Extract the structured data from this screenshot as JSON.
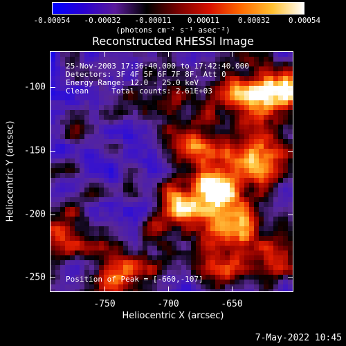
{
  "colorbar": {
    "ticks": [
      "-0.00054",
      "-0.00032",
      "-0.00011",
      "0.00011",
      "0.00032",
      "0.00054"
    ],
    "units": "(photons cm⁻² s⁻¹ asec⁻²)",
    "colors": [
      "#0000ff",
      "#2a00d0",
      "#5a1a9a",
      "#000000",
      "#7a0000",
      "#d81000",
      "#ff6a00",
      "#ffc030",
      "#ffffff"
    ]
  },
  "title": "Reconstructed RHESSI Image",
  "annotations": {
    "line1": "25-Nov-2003 17:36:40.000 to 17:42:40.000",
    "line2": "Detectors: 3F 4F 5F 6F 7F 8F, Att 0",
    "line3": "Energy Range: 12.0 - 25.0 keV",
    "line4": "Clean     Total counts: 2.61E+03",
    "peak": "Position of Peak = [-660,-107]"
  },
  "axes": {
    "xlabel": "Heliocentric X (arcsec)",
    "ylabel": "Heliocentric Y (arcsec)",
    "xticks": [
      "-750",
      "-700",
      "-650"
    ],
    "yticks": [
      "-100",
      "-150",
      "-200",
      "-250"
    ]
  },
  "footer": {
    "date": "7-May-2022 10:45"
  }
}
